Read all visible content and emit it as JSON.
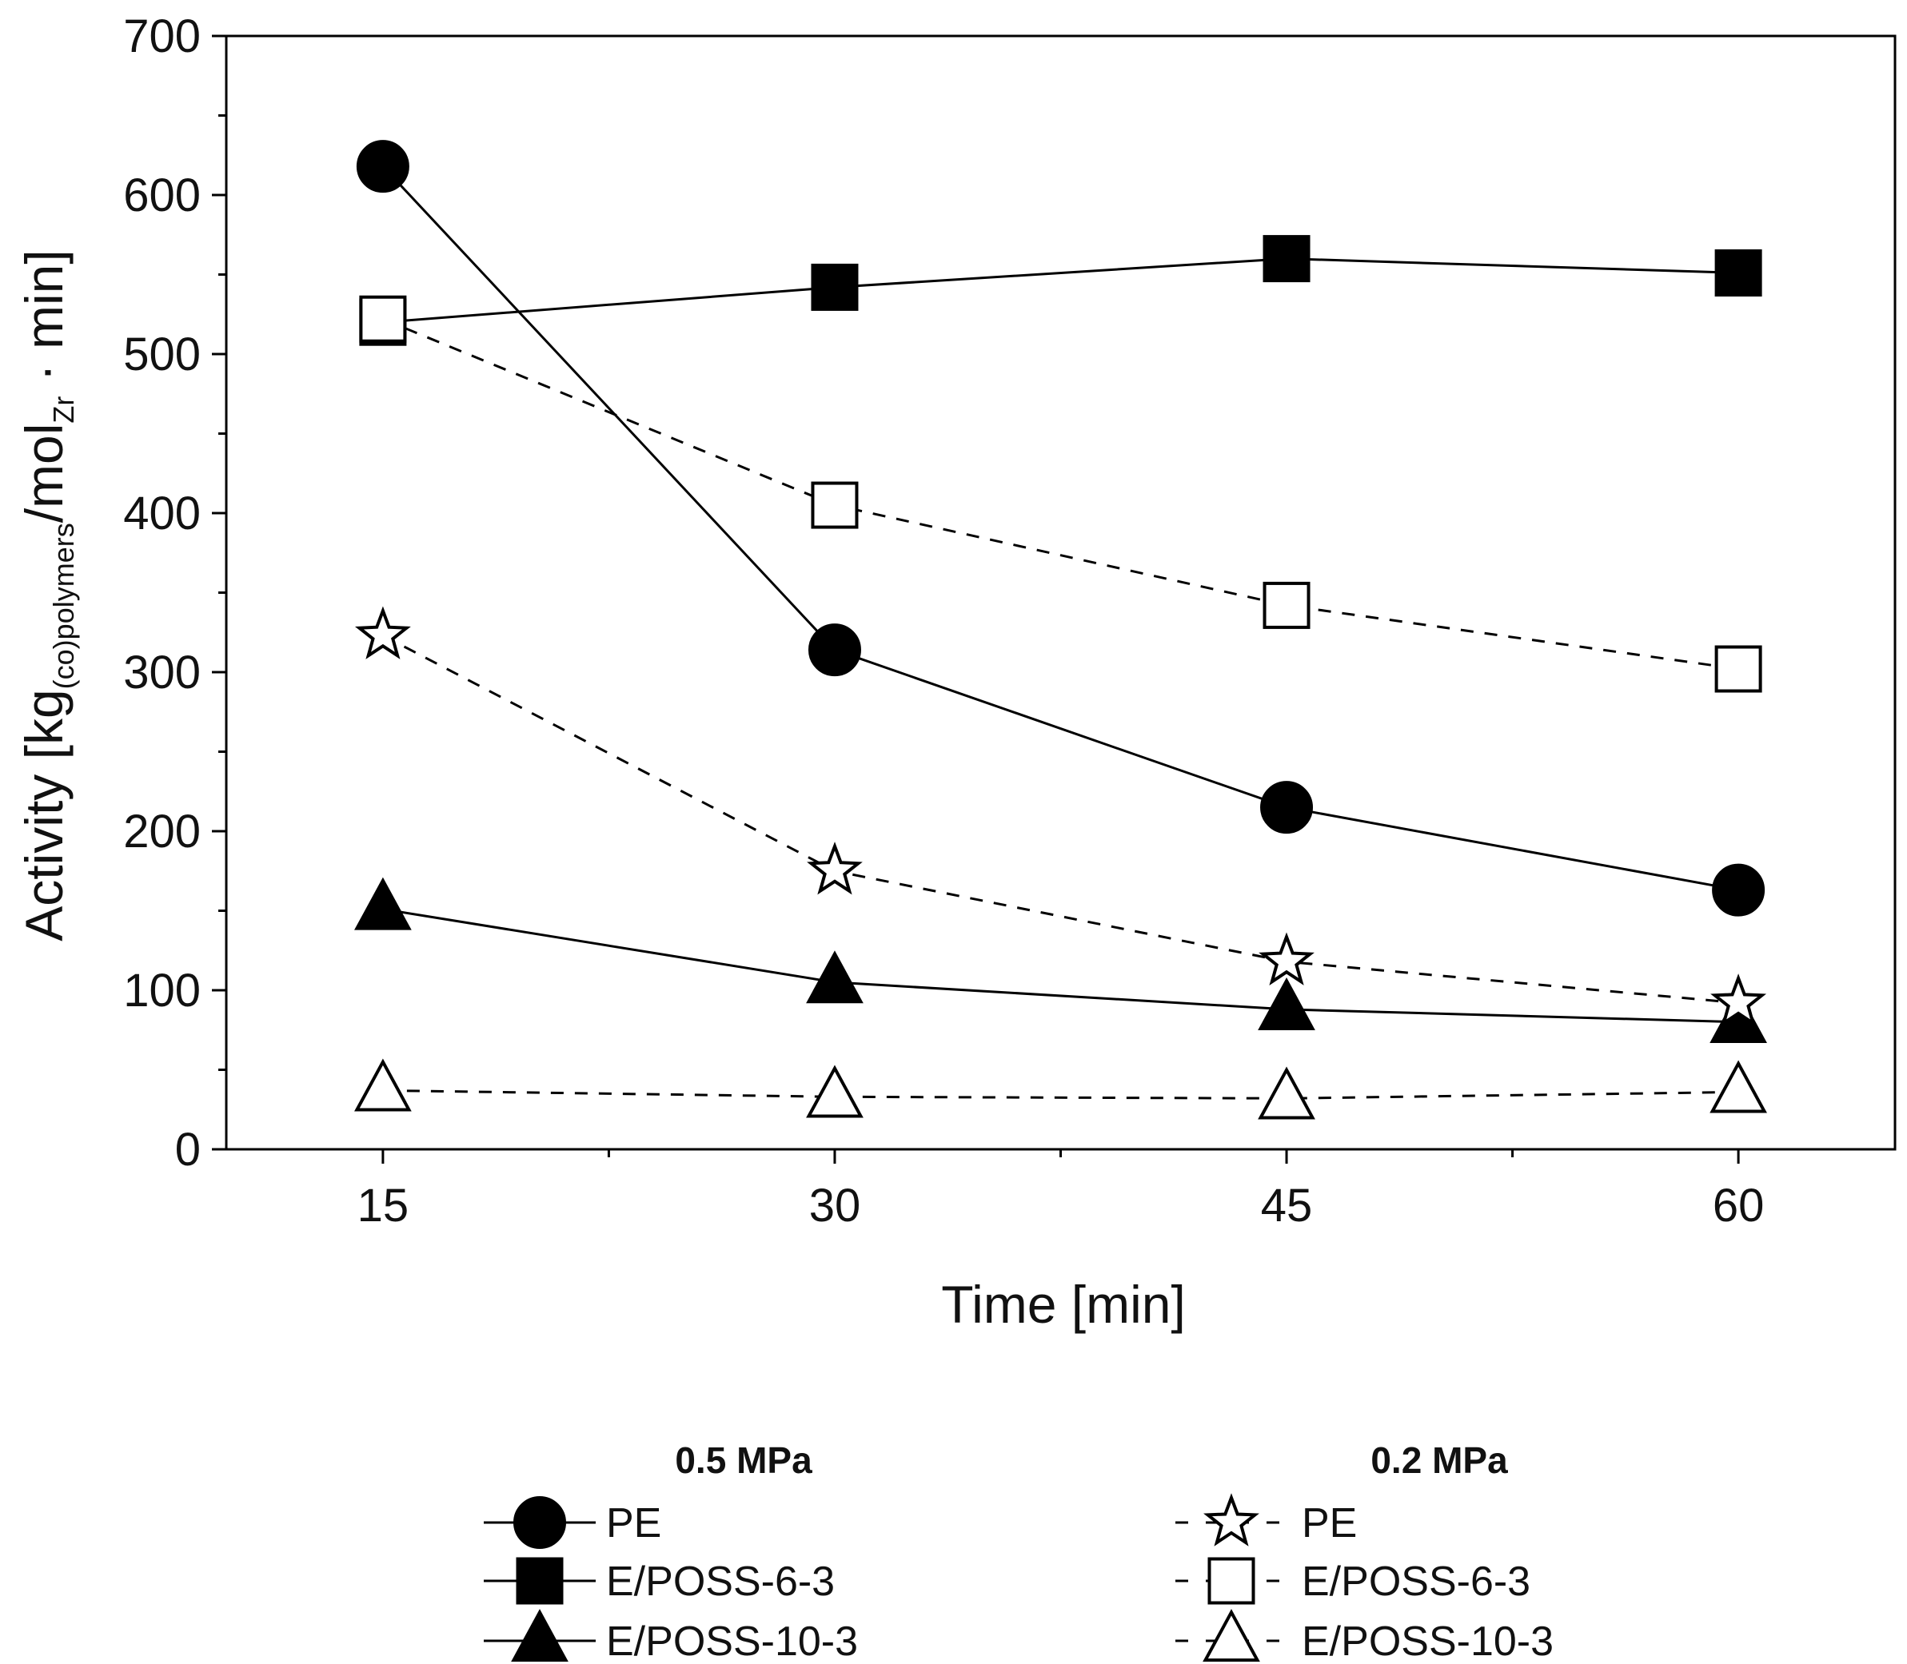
{
  "chart_data": {
    "type": "line",
    "title": "",
    "xlabel": "Time [min]",
    "ylabel": "Activity [kg(co)polymers/molZr · min]",
    "ylabel_parts": {
      "pre": "Activity [kg",
      "sub1": "(co)polymers",
      "mid": "/mol",
      "sub2": "Zr",
      "post": " · min]"
    },
    "x": [
      15,
      30,
      45,
      60
    ],
    "xlim": [
      9.8,
      65.2
    ],
    "ylim": [
      0,
      700
    ],
    "yticks": [
      0,
      100,
      200,
      300,
      400,
      500,
      600,
      700
    ],
    "xticks": [
      15,
      30,
      45,
      60
    ],
    "legend_groups": [
      {
        "title": "0.5 MPa"
      },
      {
        "title": "0.2 MPa"
      }
    ],
    "series": [
      {
        "name": "PE",
        "group": "0.5 MPa",
        "marker": "circle",
        "filled": true,
        "dashed": false,
        "color": "#000000",
        "values": [
          618,
          314,
          215,
          163
        ]
      },
      {
        "name": "E/POSS-6-3",
        "group": "0.5 MPa",
        "marker": "square",
        "filled": true,
        "dashed": false,
        "color": "#000000",
        "values": [
          520,
          542,
          560,
          551
        ]
      },
      {
        "name": "E/POSS-10-3",
        "group": "0.5 MPa",
        "marker": "triangle",
        "filled": true,
        "dashed": false,
        "color": "#000000",
        "values": [
          151,
          105,
          88,
          80
        ]
      },
      {
        "name": "PE",
        "group": "0.2 MPa",
        "marker": "star",
        "filled": false,
        "dashed": true,
        "color": "#000000",
        "values": [
          323,
          175,
          118,
          92
        ]
      },
      {
        "name": "E/POSS-6-3",
        "group": "0.2 MPa",
        "marker": "square",
        "filled": false,
        "dashed": true,
        "color": "#000000",
        "values": [
          522,
          405,
          342,
          302
        ]
      },
      {
        "name": "E/POSS-10-3",
        "group": "0.2 MPa",
        "marker": "triangle",
        "filled": false,
        "dashed": true,
        "color": "#000000",
        "values": [
          37,
          33,
          32,
          36
        ]
      }
    ]
  }
}
